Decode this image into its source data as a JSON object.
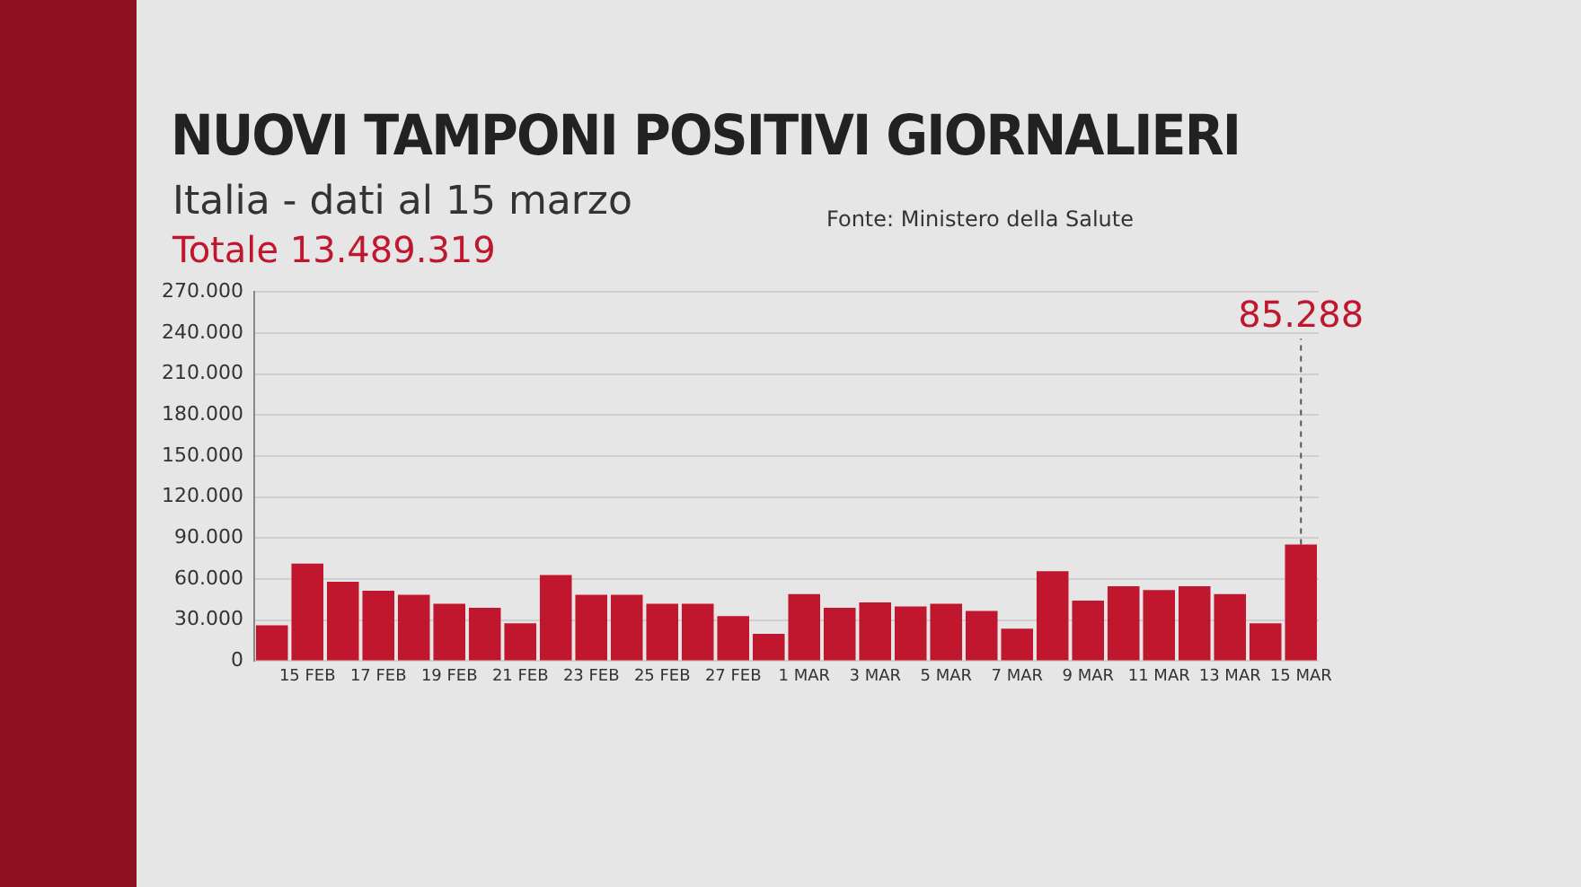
{
  "chart_data": {
    "type": "bar",
    "title": "NUOVI TAMPONI POSITIVI GIORNALIERI",
    "subtitle": "Italia - dati al 15 marzo",
    "categories": [
      null,
      "15 FEB",
      null,
      "17 FEB",
      null,
      "19 FEB",
      null,
      "21 FEB",
      null,
      "23 FEB",
      null,
      "25 FEB",
      null,
      "27 FEB",
      null,
      "1 MAR",
      null,
      "3 MAR",
      null,
      "5 MAR",
      null,
      "7 MAR",
      null,
      "9 MAR",
      null,
      "11 MAR",
      null,
      "13 MAR",
      null,
      "15 MAR"
    ],
    "values": [
      26200,
      71400,
      58100,
      51400,
      48600,
      41900,
      39000,
      27600,
      62900,
      48600,
      48600,
      41900,
      41900,
      32900,
      20000,
      49000,
      39000,
      42900,
      40000,
      41900,
      36700,
      23800,
      65700,
      44300,
      54800,
      51900,
      54800,
      49000,
      27600,
      85288
    ],
    "color": "#c0172f",
    "ylim": [
      0,
      270000
    ],
    "yticks": [
      0,
      {
        "value": 30000,
        "label": "30.000"
      },
      {
        "value": 60000,
        "label": "60.000"
      },
      {
        "value": 90000,
        "label": "90.000"
      },
      {
        "value": 120000,
        "label": "120.000"
      },
      {
        "value": 150000,
        "label": "150.000"
      },
      {
        "value": 180000,
        "label": "180.000"
      },
      {
        "value": 210000,
        "label": "210.000"
      },
      {
        "value": 240000,
        "label": "240.000"
      },
      {
        "value": 270000,
        "label": "270.000"
      }
    ],
    "grid": "y",
    "annotations": [
      "Totale 13.489.319",
      "Fonte: Ministero della Salute",
      {
        "text": "85.288",
        "x": "15 MAR",
        "y": 85288
      }
    ]
  }
}
